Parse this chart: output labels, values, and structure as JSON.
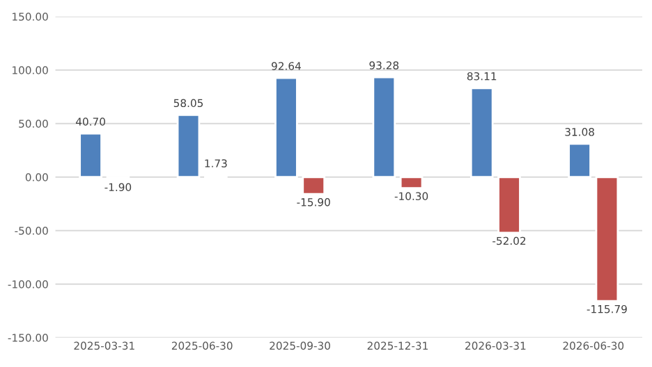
{
  "chart_data": {
    "type": "bar",
    "categories": [
      "2025-03-31",
      "2025-06-30",
      "2025-09-30",
      "2025-12-31",
      "2026-03-31",
      "2026-06-30"
    ],
    "series": [
      {
        "color": "#4f81bd",
        "values": [
          40.7,
          58.05,
          92.64,
          93.28,
          83.11,
          31.08
        ],
        "value_labels": [
          "40.70",
          "58.05",
          "92.64",
          "93.28",
          "83.11",
          "31.08"
        ]
      },
      {
        "color": "#c0504d",
        "values": [
          -1.9,
          1.73,
          -15.9,
          -10.3,
          -52.02,
          -115.79
        ],
        "value_labels": [
          "-1.90",
          "1.73",
          "-15.90",
          "-10.30",
          "-52.02",
          "-115.79"
        ]
      }
    ],
    "ylim": [
      -150,
      150
    ],
    "yticks": [
      {
        "value": -150,
        "label": "-150.00"
      },
      {
        "value": -100,
        "label": "-100.00"
      },
      {
        "value": -50,
        "label": "-50.00"
      },
      {
        "value": 0,
        "label": "0.00"
      },
      {
        "value": 50,
        "label": "50.00"
      },
      {
        "value": 100,
        "label": "100.00"
      },
      {
        "value": 150,
        "label": "150.00"
      }
    ],
    "grid": "y",
    "legend": false
  }
}
